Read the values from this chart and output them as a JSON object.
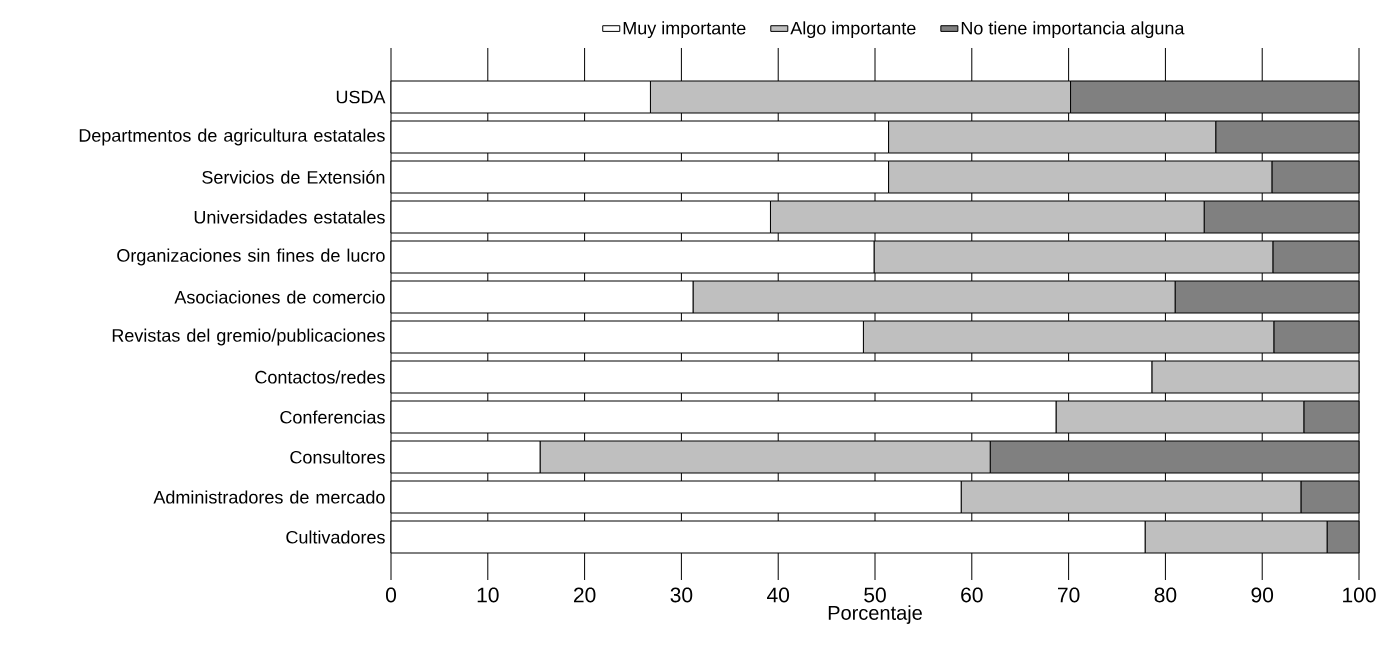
{
  "chart_data": {
    "type": "bar",
    "orientation": "horizontal",
    "stacked": true,
    "xlabel": "Porcentaje",
    "categories": [
      "USDA",
      "Departmentos de agricultura estatales",
      "Servicios de Extensión",
      "Universidades estatales",
      "Organizaciones sin fines de lucro",
      "Asociaciones de comercio",
      "Revistas del gremio/publicaciones",
      "Contactos/redes",
      "Conferencias",
      "Consultores",
      "Administradores de mercado",
      "Cultivadores"
    ],
    "series": [
      {
        "name": "Muy importante",
        "color": "#ffffff",
        "values": [
          26.8,
          51.4,
          51.4,
          39.2,
          49.9,
          31.2,
          48.8,
          78.6,
          68.7,
          15.4,
          58.9,
          77.9
        ]
      },
      {
        "name": "Algo importante",
        "color": "#bfbfbf",
        "values": [
          43.4,
          33.8,
          39.6,
          44.8,
          41.2,
          49.8,
          42.4,
          21.4,
          25.6,
          46.5,
          35.1,
          18.8
        ]
      },
      {
        "name": "No tiene importancia alguna",
        "color": "#808080",
        "values": [
          29.8,
          14.8,
          9.0,
          16.0,
          8.9,
          19.0,
          8.8,
          0,
          5.7,
          38.1,
          6.0,
          3.3
        ]
      }
    ],
    "xlim": [
      0,
      100
    ],
    "xticks": [
      0,
      10,
      20,
      30,
      40,
      50,
      60,
      70,
      80,
      90,
      100
    ],
    "grid": "x",
    "legend": "top"
  }
}
